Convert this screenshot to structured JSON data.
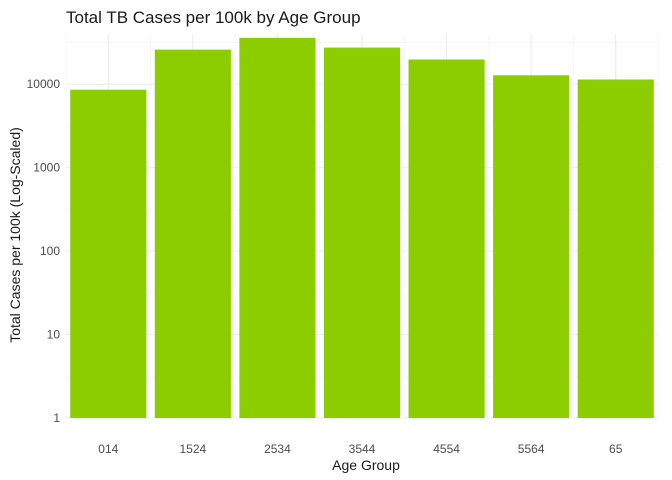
{
  "chart_data": {
    "type": "bar",
    "title": "Total TB Cases per 100k by Age Group",
    "xlabel": "Age Group",
    "ylabel": "Total Cases per 100k (Log-Scaled)",
    "y_scale": "log10",
    "ylim": [
      1,
      40000
    ],
    "y_ticks": [
      1,
      10,
      100,
      1000,
      10000
    ],
    "y_tick_labels": [
      "1",
      "10",
      "100",
      "1000",
      "10000"
    ],
    "categories": [
      "014",
      "1524",
      "2534",
      "3544",
      "4554",
      "5564",
      "65"
    ],
    "values": [
      8600,
      26000,
      36000,
      27500,
      19800,
      12800,
      11400
    ],
    "bar_color": "#8ccd00",
    "grid": true,
    "legend": "none"
  }
}
